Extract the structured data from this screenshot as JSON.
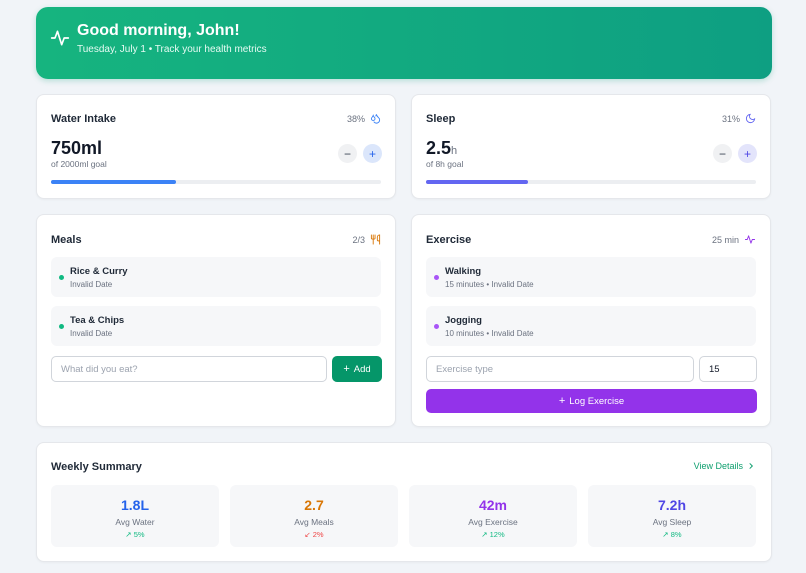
{
  "header": {
    "greeting": "Good morning, John!",
    "subtitle": "Tuesday, July 1 • Track your health metrics",
    "icon": "activity-icon"
  },
  "water": {
    "title": "Water Intake",
    "percent_label": "38%",
    "icon": "droplets-icon",
    "value": "750ml",
    "goal": "of 2000ml goal",
    "minus": "−",
    "plus": "+",
    "progress_fraction": 0.38,
    "color": "#3b82f6"
  },
  "sleep": {
    "title": "Sleep",
    "percent_label": "31%",
    "icon": "moon-icon",
    "value": "2.5",
    "unit": "h",
    "goal": "of 8h goal",
    "minus": "−",
    "plus": "+",
    "progress_fraction": 0.31,
    "color": "#6366f1"
  },
  "meals": {
    "title": "Meals",
    "count_label": "2/3",
    "icon": "utensils-icon",
    "items": [
      {
        "name": "Rice & Curry",
        "sub": "Invalid Date"
      },
      {
        "name": "Tea & Chips",
        "sub": "Invalid Date"
      }
    ],
    "input_placeholder": "What did you eat?",
    "add_label": "Add",
    "color": "#059669"
  },
  "exercise": {
    "title": "Exercise",
    "minutes_label": "25 min",
    "icon": "activity-icon",
    "items": [
      {
        "name": "Walking",
        "sub": "15 minutes • Invalid Date"
      },
      {
        "name": "Jogging",
        "sub": "10 minutes • Invalid Date"
      }
    ],
    "type_placeholder": "Exercise type",
    "minutes_value": "15",
    "log_label": "Log Exercise",
    "color": "#9333ea"
  },
  "summary": {
    "title": "Weekly Summary",
    "view_details": "View Details",
    "stats": [
      {
        "value": "1.8L",
        "label": "Avg Water",
        "trend": "5%",
        "direction": "up",
        "color": "#2563eb"
      },
      {
        "value": "2.7",
        "label": "Avg Meals",
        "trend": "2%",
        "direction": "down",
        "color": "#d97706"
      },
      {
        "value": "42m",
        "label": "Avg Exercise",
        "trend": "12%",
        "direction": "up",
        "color": "#9333ea"
      },
      {
        "value": "7.2h",
        "label": "Avg Sleep",
        "trend": "8%",
        "direction": "up",
        "color": "#4f46e5"
      }
    ]
  }
}
